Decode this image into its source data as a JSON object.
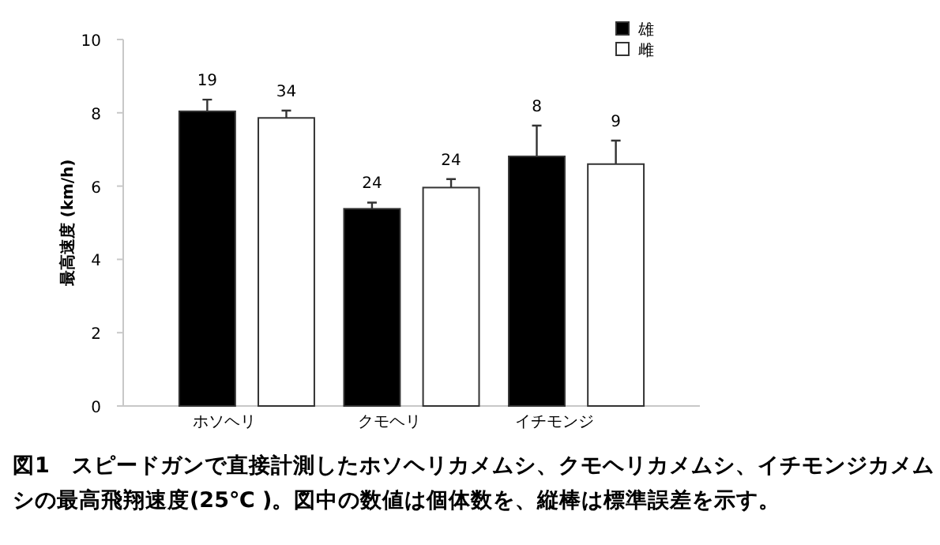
{
  "chart_data": {
    "type": "bar",
    "ylabel": "最高速度 (km/h)",
    "categories": [
      "ホソヘリ",
      "クモヘリ",
      "イチモンジ"
    ],
    "series": [
      {
        "name": "雄",
        "color": "#000000",
        "values": [
          8.04,
          5.38,
          6.81
        ],
        "errors": [
          [
            8.04,
            8.36
          ],
          [
            5.38,
            5.55
          ],
          [
            6.81,
            7.65
          ]
        ]
      },
      {
        "name": "雌",
        "color": "#ffffff",
        "values": [
          7.86,
          5.96,
          6.6
        ],
        "errors": [
          [
            7.86,
            8.06
          ],
          [
            5.96,
            6.19
          ],
          [
            6.6,
            7.24
          ]
        ]
      }
    ],
    "ylim": [
      0,
      10
    ],
    "yticks": [
      0,
      2,
      4,
      6,
      8,
      10
    ],
    "grid": false,
    "legend": "top right",
    "annotations": [
      "19",
      "34",
      "24",
      "24",
      "8",
      "9",
      "図1　スピードガンで直接計測したホソヘリカメムシ、クモヘリカメムシ、イチモンジカメムシの最高飛翔速度(25℃ )。図中の数値は個体数を、縦棒は標準誤差を示す。"
    ]
  }
}
